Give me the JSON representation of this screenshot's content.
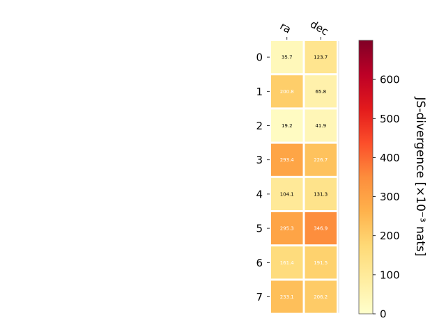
{
  "chart_data": {
    "type": "heatmap",
    "title": "",
    "xlabel": "",
    "ylabel": "",
    "x_categories": [
      "ra",
      "dec"
    ],
    "y_categories": [
      "0",
      "1",
      "2",
      "3",
      "4",
      "5",
      "6",
      "7"
    ],
    "values": [
      [
        35.7,
        123.7
      ],
      [
        200.8,
        65.8
      ],
      [
        19.2,
        41.9
      ],
      [
        293.4,
        226.7
      ],
      [
        104.1,
        131.3
      ],
      [
        295.3,
        346.9
      ],
      [
        161.4,
        191.5
      ],
      [
        233.1,
        206.2
      ]
    ],
    "cell_labels": [
      [
        "35.7",
        "123.7"
      ],
      [
        "200.8",
        "65.8"
      ],
      [
        "19.2",
        "41.9"
      ],
      [
        "293.4",
        "226.7"
      ],
      [
        "104.1",
        "131.3"
      ],
      [
        "295.3",
        "346.9"
      ],
      [
        "161.4",
        "191.5"
      ],
      [
        "233.1",
        "206.2"
      ]
    ],
    "colorbar": {
      "label": "JS-divergence [×10⁻³ nats]",
      "range": [
        0,
        700
      ],
      "ticks": [
        0,
        100,
        200,
        300,
        400,
        500,
        600
      ],
      "tick_labels": [
        "0",
        "100",
        "200",
        "300",
        "400",
        "500",
        "600"
      ],
      "colormap": "YlOrRd",
      "colormap_stops": [
        "#ffffcc",
        "#ffeda0",
        "#fed976",
        "#feb24c",
        "#fd8d3c",
        "#fc4e2a",
        "#e31a1c",
        "#bd0026",
        "#800026"
      ]
    },
    "grid": false
  }
}
